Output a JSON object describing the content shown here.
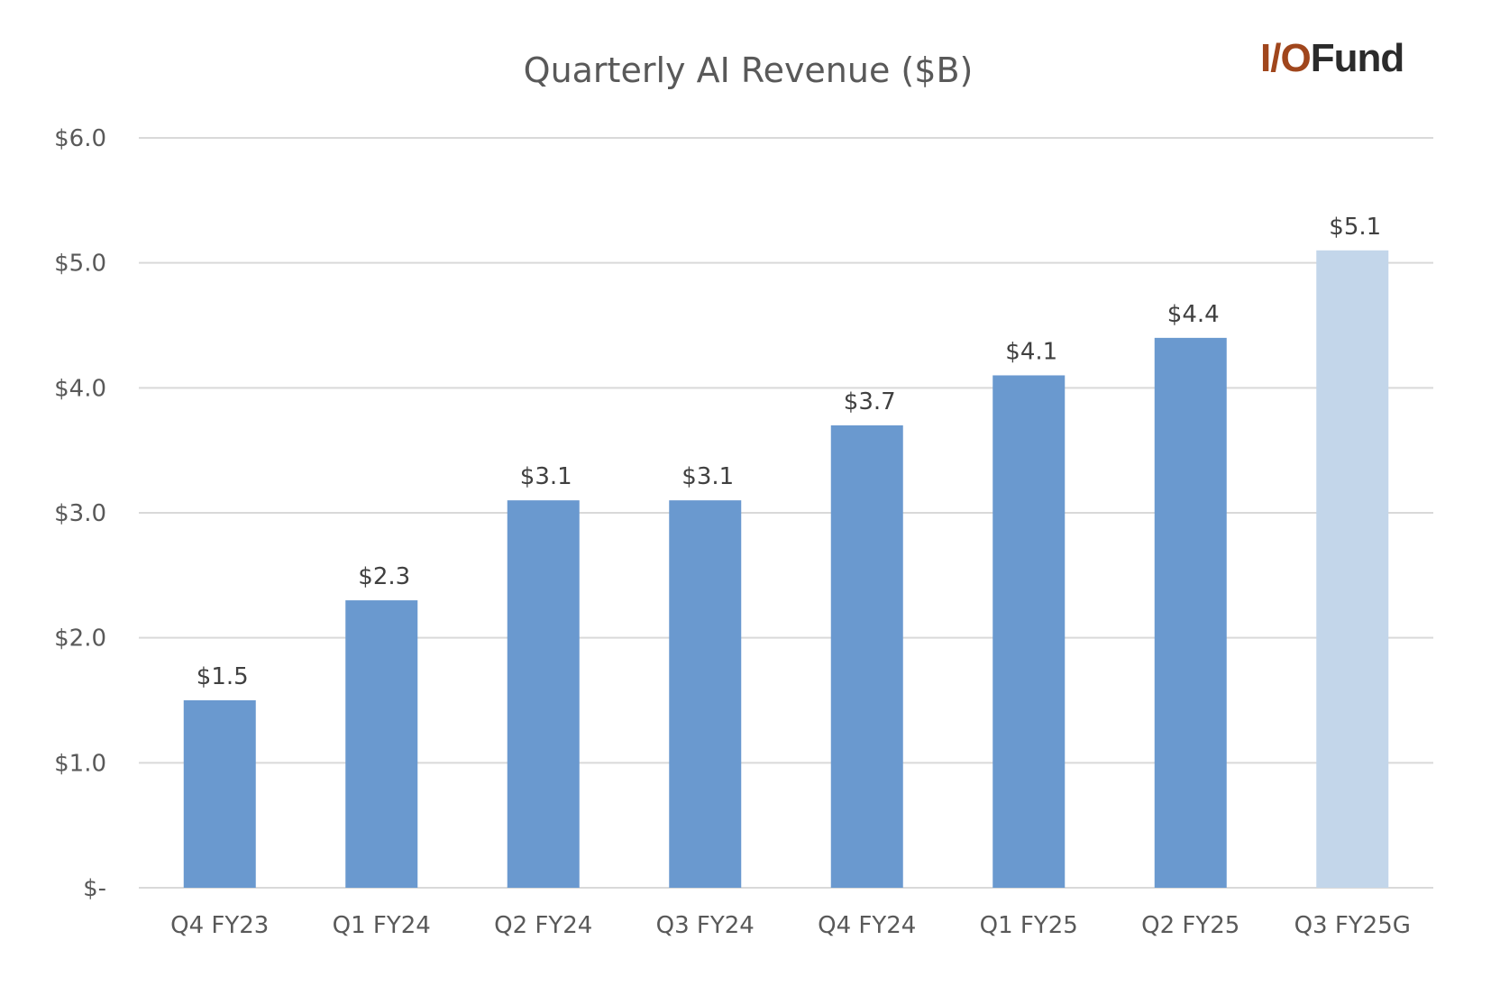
{
  "chart_data": {
    "type": "bar",
    "title": "Quarterly AI Revenue ($B)",
    "xlabel": "",
    "ylabel": "",
    "categories": [
      "Q4 FY23",
      "Q1 FY24",
      "Q2 FY24",
      "Q3 FY24",
      "Q4 FY24",
      "Q1 FY25",
      "Q2 FY25",
      "Q3 FY25G"
    ],
    "values": [
      1.5,
      2.3,
      3.1,
      3.1,
      3.7,
      4.1,
      4.4,
      5.1
    ],
    "data_labels": [
      "$1.5",
      "$2.3",
      "$3.1",
      "$3.1",
      "$3.7",
      "$4.1",
      "$4.4",
      "$5.1"
    ],
    "ylim": [
      0,
      6
    ],
    "yticks": [
      0,
      1,
      2,
      3,
      4,
      5,
      6
    ],
    "ytick_labels": [
      "$-",
      "$1.0",
      "$2.0",
      "$3.0",
      "$4.0",
      "$5.0",
      "$6.0"
    ],
    "grid": true,
    "colors": {
      "actual": "#6a99cf",
      "guidance": "#c3d6ea",
      "grid": "#d9d9d9"
    },
    "bar_color_by_category": [
      "actual",
      "actual",
      "actual",
      "actual",
      "actual",
      "actual",
      "actual",
      "guidance"
    ]
  },
  "logo": {
    "part1": "I/O",
    "part2": "Fund"
  }
}
